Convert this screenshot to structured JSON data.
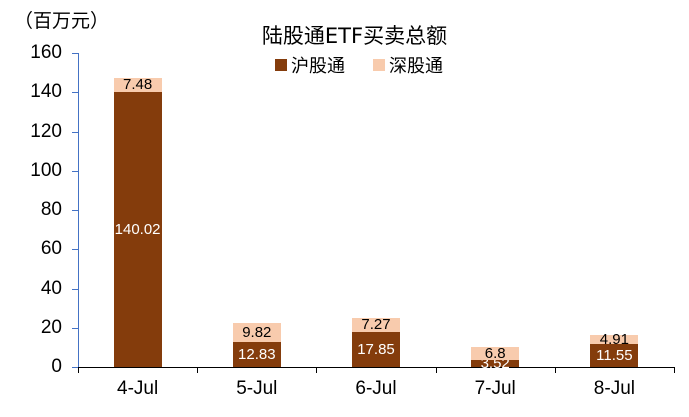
{
  "chart_data": {
    "type": "bar",
    "stacked": true,
    "title": "陆股通ETF买卖总额",
    "unit_label": "（百万元）",
    "xlabel": "",
    "ylabel": "（百万元）",
    "ylim": [
      0,
      160
    ],
    "yticks": [
      "0",
      "20",
      "40",
      "60",
      "80",
      "100",
      "120",
      "140",
      "160"
    ],
    "grid": false,
    "legend_position": "top",
    "categories": [
      "4-Jul",
      "5-Jul",
      "6-Jul",
      "7-Jul",
      "8-Jul"
    ],
    "series": [
      {
        "name": "沪股通",
        "color": "#843c0c",
        "values": [
          140.02,
          12.83,
          17.85,
          3.52,
          11.55
        ],
        "labels": [
          "140.02",
          "12.83",
          "17.85",
          "3.52",
          "11.55"
        ]
      },
      {
        "name": "深股通",
        "color": "#f8cbad",
        "values": [
          7.48,
          9.82,
          7.27,
          6.8,
          4.91
        ],
        "labels": [
          "7.48",
          "9.82",
          "7.27",
          "6.8",
          "4.91"
        ]
      }
    ]
  }
}
